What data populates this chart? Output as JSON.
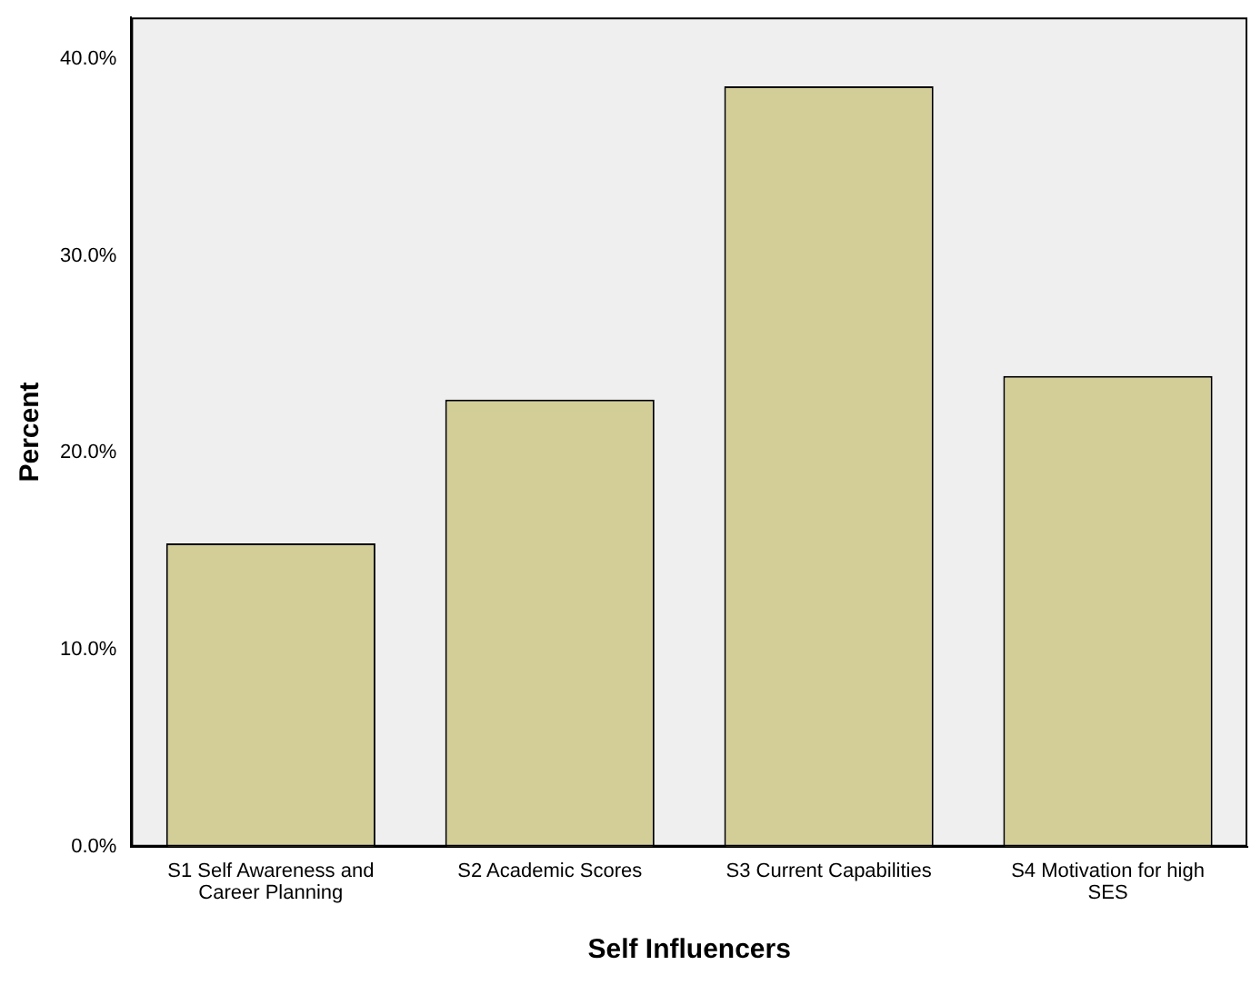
{
  "chart_data": {
    "type": "bar",
    "xlabel": "Self Influencers",
    "ylabel": "Percent",
    "categories": [
      "S1 Self Awareness and Career Planning",
      "S2 Academic Scores",
      "S3 Current Capabilities",
      "S4 Motivation for high SES"
    ],
    "values": [
      15.4,
      22.7,
      38.6,
      23.9
    ],
    "color": "#d3ce98",
    "ylim": [
      0,
      42.1
    ],
    "yticks": [
      {
        "value": 0,
        "label": "0.0%"
      },
      {
        "value": 10,
        "label": "10.0%"
      },
      {
        "value": 20,
        "label": "20.0%"
      },
      {
        "value": 30,
        "label": "30.0%"
      },
      {
        "value": 40,
        "label": "40.0%"
      }
    ],
    "grid": false
  }
}
